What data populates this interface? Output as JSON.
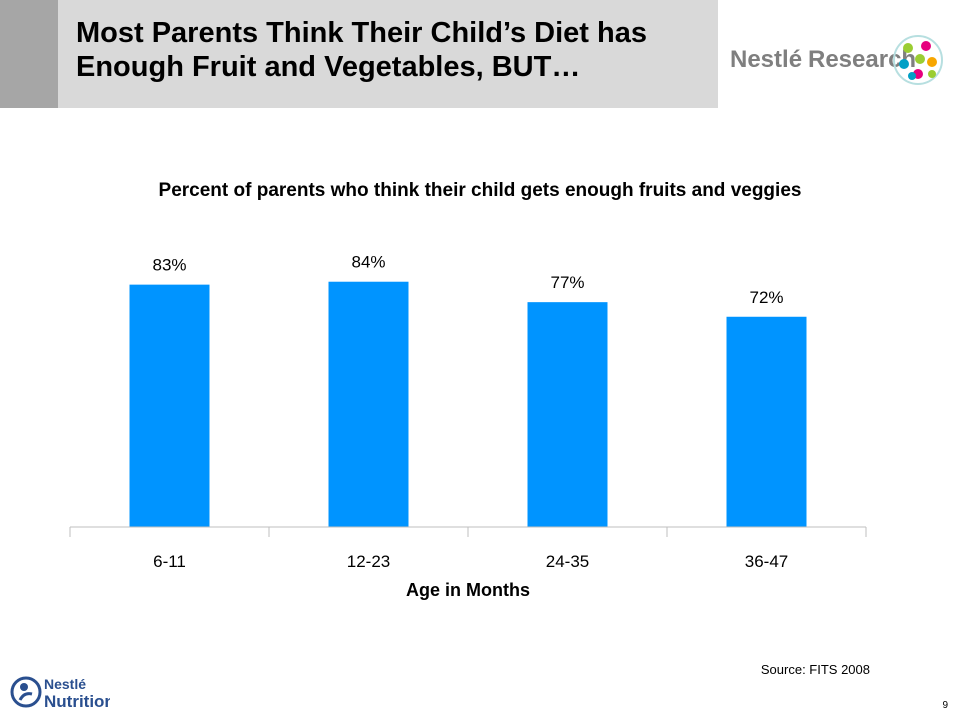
{
  "slide": {
    "title": "Most Parents Think Their Child’s Diet has Enough Fruit and Vegetables, BUT…",
    "source": "Source: FITS 2008",
    "page_number": "9",
    "logos": {
      "research": {
        "icon": "nestle-research-logo",
        "text_a": "Nestlé",
        "text_b": "Research"
      },
      "nutrition": {
        "icon": "nestle-nutrition-logo",
        "text_a": "Nestlé",
        "text_b": "Nutrition"
      }
    }
  },
  "chart_data": {
    "type": "bar",
    "title": "Percent of parents who think their child gets enough fruits and veggies",
    "xlabel": "Age in Months",
    "ylabel": "",
    "categories": [
      "6-11",
      "12-23",
      "24-35",
      "36-47"
    ],
    "values": [
      83,
      84,
      77,
      72
    ],
    "data_labels": [
      "83%",
      "84%",
      "77%",
      "72%"
    ],
    "ylim": [
      0,
      100
    ],
    "grid": false,
    "legend": "none",
    "bar_color": "#0094ff",
    "axis_color": "#bfbfbf"
  }
}
